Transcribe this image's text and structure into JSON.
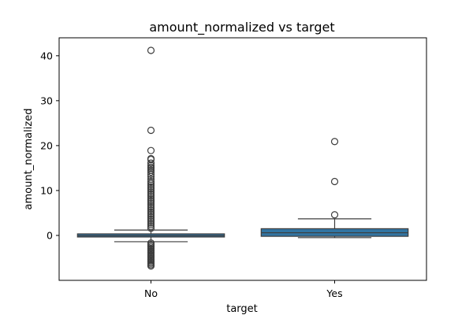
{
  "chart_data": {
    "type": "box",
    "title": "amount_normalized vs target",
    "xlabel": "target",
    "ylabel": "amount_normalized",
    "categories": [
      "No",
      "Yes"
    ],
    "ylim": [
      -10,
      44
    ],
    "yticks": [
      0,
      10,
      20,
      30,
      40
    ],
    "grid": false,
    "colors": {
      "box_fill": "#3274a1",
      "box_edge": "#3d3d3d",
      "axes": "#000000"
    },
    "boxes": [
      {
        "category": "No",
        "whisker_low": -1.4,
        "q1": -0.35,
        "median": -0.05,
        "q3": 0.35,
        "whisker_high": 1.2,
        "outliers": [
          41.2,
          23.4,
          18.9,
          17.1,
          16.9,
          16.1,
          15.6,
          15.2,
          14.9,
          14.5,
          14.1,
          13.6,
          13.1,
          12.5,
          12.0,
          11.6,
          11.2,
          10.8,
          10.4,
          10.0,
          9.6,
          9.2,
          8.8,
          8.4,
          8.0,
          7.6,
          7.2,
          6.8,
          6.4,
          6.0,
          5.6,
          5.2,
          4.8,
          4.4,
          4.0,
          3.6,
          3.2,
          2.8,
          2.4,
          2.0,
          1.6,
          -1.7,
          -2.0,
          -2.3,
          -2.6,
          -2.9,
          -3.2,
          -3.5,
          -3.8,
          -4.1,
          -4.4,
          -4.7,
          -5.0,
          -5.3,
          -5.6,
          -5.9,
          -6.2,
          -6.5,
          -6.8
        ]
      },
      {
        "category": "Yes",
        "whisker_low": -0.5,
        "q1": -0.2,
        "median": 0.6,
        "q3": 1.5,
        "whisker_high": 3.7,
        "outliers": [
          20.9,
          12.0,
          4.6
        ]
      }
    ]
  }
}
